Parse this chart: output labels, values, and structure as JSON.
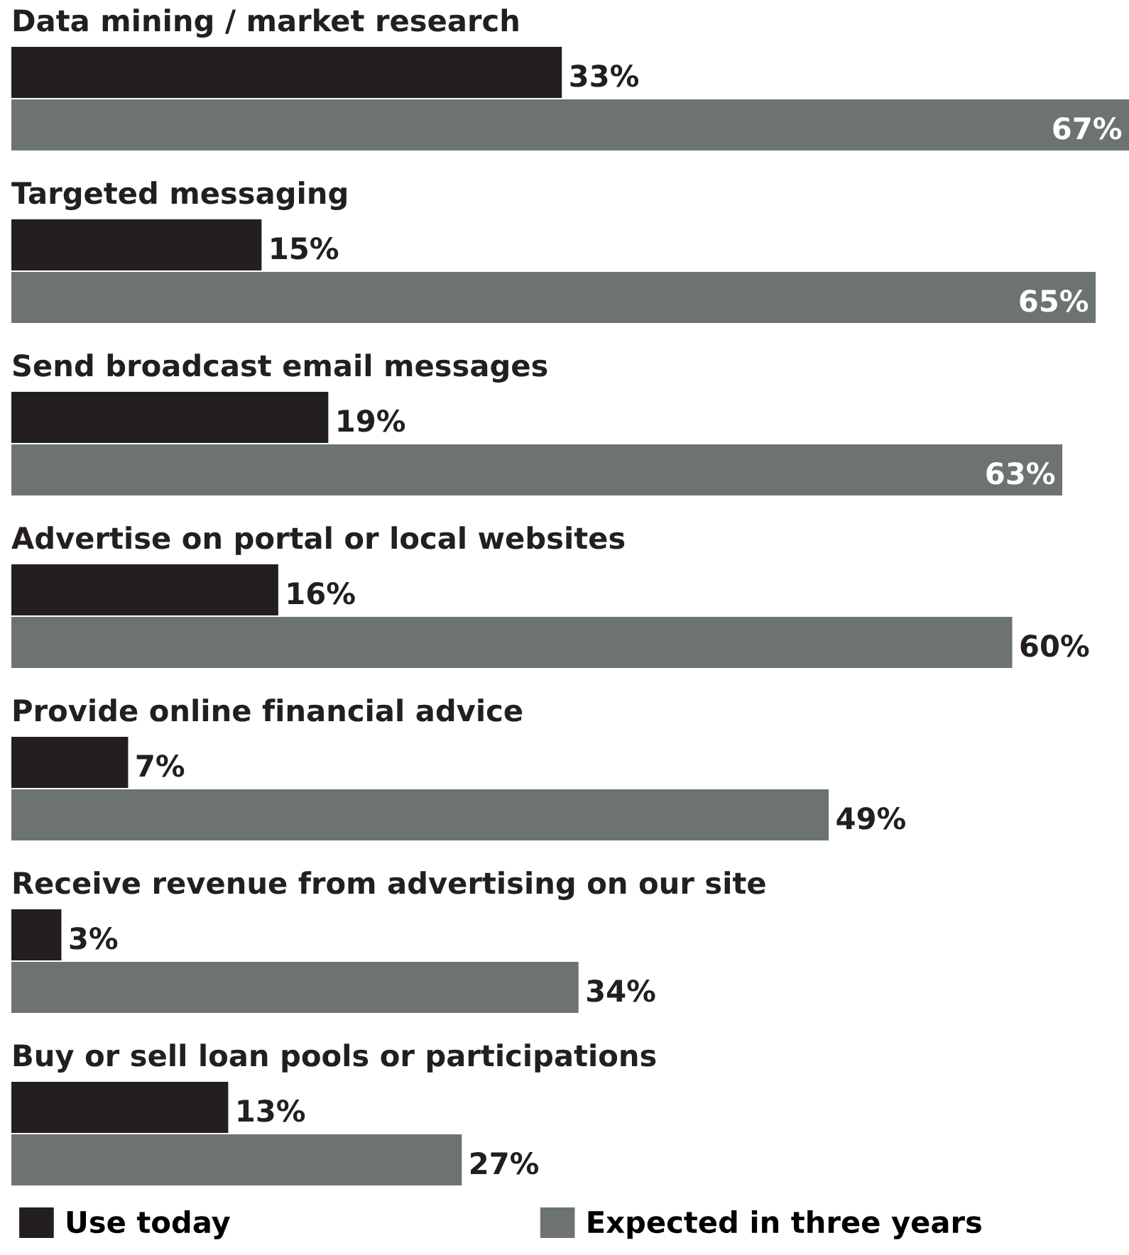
{
  "chart_data": {
    "type": "bar",
    "orientation": "horizontal",
    "categories": [
      "Data mining / market research",
      "Targeted messaging",
      "Send broadcast email messages",
      "Advertise on portal or local websites",
      "Provide online financial advice",
      "Receive revenue from advertising on our site",
      "Buy or sell loan pools or participations"
    ],
    "series": [
      {
        "name": "Use today",
        "color": "#231f20",
        "values": [
          33,
          15,
          19,
          16,
          7,
          3,
          13
        ],
        "value_labels": [
          "33%",
          "15%",
          "19%",
          "16%",
          "7%",
          "3%",
          "13%"
        ]
      },
      {
        "name": "Expected in three years",
        "color": "#6d7373",
        "values": [
          67,
          65,
          63,
          60,
          49,
          34,
          27
        ],
        "value_labels": [
          "67%",
          "65%",
          "63%",
          "60%",
          "49%",
          "34%",
          "27%"
        ]
      }
    ],
    "legend": "bottom"
  }
}
